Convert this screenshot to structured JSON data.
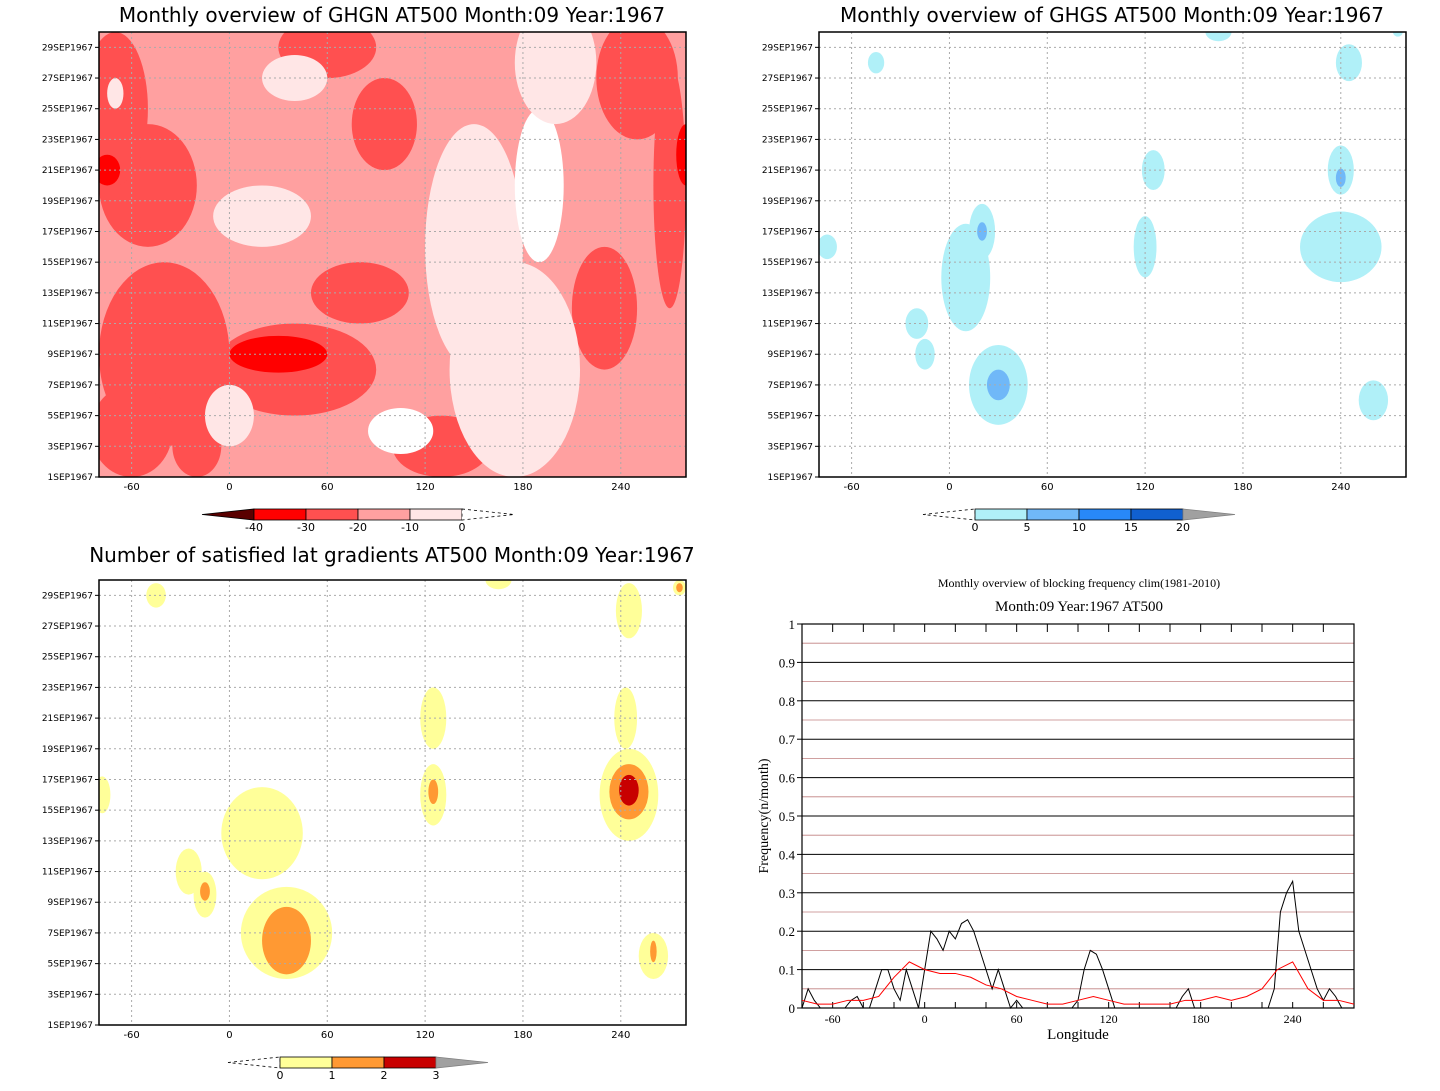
{
  "colors": {
    "ghgn": [
      "#5a0000",
      "#ff0000",
      "#ff5050",
      "#ffa0a0",
      "#ffe6e6",
      "#ffffff"
    ],
    "ghgs": [
      "#ffffff",
      "#b0f0f8",
      "#70b8f8",
      "#2888f8",
      "#1060d0",
      "#a0a0a0"
    ],
    "lat": [
      "#ffffff",
      "#ffff99",
      "#ff9933",
      "#c80000",
      "#a0a0a0"
    ],
    "freq_black": "#000000",
    "freq_red": "#ff0000",
    "grid_black": "#000000",
    "grid_red": "#c08080"
  },
  "chart_data": [
    {
      "type": "heatmap",
      "title": "Monthly overview of GHGN AT500 Month:09 Year:1967",
      "x_ticks": [
        "-60",
        "0",
        "60",
        "120",
        "180",
        "240"
      ],
      "y_ticks": [
        "1SEP1967",
        "3SEP1967",
        "5SEP1967",
        "7SEP1967",
        "9SEP1967",
        "11SEP1967",
        "13SEP1967",
        "15SEP1967",
        "17SEP1967",
        "19SEP1967",
        "21SEP1967",
        "23SEP1967",
        "25SEP1967",
        "27SEP1967",
        "29SEP1967"
      ],
      "xlim": [
        -80,
        280
      ],
      "ylim_days": [
        1,
        30
      ],
      "colorbar": {
        "ticks": [
          "-40",
          "-30",
          "-20",
          "-10",
          "0"
        ],
        "levels": [
          -40,
          -30,
          -20,
          -10,
          0
        ]
      },
      "grid": true
    },
    {
      "type": "heatmap",
      "title": "Monthly overview of GHGS AT500 Month:09 Year:1967",
      "x_ticks": [
        "-60",
        "0",
        "60",
        "120",
        "180",
        "240"
      ],
      "y_ticks": [
        "1SEP1967",
        "3SEP1967",
        "5SEP1967",
        "7SEP1967",
        "9SEP1967",
        "11SEP1967",
        "13SEP1967",
        "15SEP1967",
        "17SEP1967",
        "19SEP1967",
        "21SEP1967",
        "23SEP1967",
        "25SEP1967",
        "27SEP1967",
        "29SEP1967"
      ],
      "xlim": [
        -80,
        280
      ],
      "ylim_days": [
        1,
        30
      ],
      "colorbar": {
        "ticks": [
          "0",
          "5",
          "10",
          "15",
          "20"
        ],
        "levels": [
          0,
          5,
          10,
          15,
          20
        ]
      },
      "grid": true
    },
    {
      "type": "heatmap",
      "title": "Number of satisfied lat gradients AT500 Month:09 Year:1967",
      "x_ticks": [
        "-60",
        "0",
        "60",
        "120",
        "180",
        "240"
      ],
      "y_ticks": [
        "1SEP1967",
        "3SEP1967",
        "5SEP1967",
        "7SEP1967",
        "9SEP1967",
        "11SEP1967",
        "13SEP1967",
        "15SEP1967",
        "17SEP1967",
        "19SEP1967",
        "21SEP1967",
        "23SEP1967",
        "25SEP1967",
        "27SEP1967",
        "29SEP1967"
      ],
      "xlim": [
        -80,
        280
      ],
      "ylim_days": [
        1,
        30
      ],
      "colorbar": {
        "ticks": [
          "0",
          "1",
          "2",
          "3"
        ],
        "levels": [
          0,
          1,
          2,
          3
        ]
      },
      "grid": true
    },
    {
      "type": "line",
      "title": "Monthly overview of blocking frequency clim(1981-2010)",
      "subtitle": "Month:09 Year:1967  AT500",
      "xlabel": "Longitude",
      "ylabel": "Frequency(n/month)",
      "xlim": [
        -80,
        280
      ],
      "ylim": [
        0,
        1
      ],
      "x_ticks": [
        "-60",
        "0",
        "60",
        "120",
        "180",
        "240"
      ],
      "y_ticks": [
        "0",
        "0.1",
        "0.2",
        "0.3",
        "0.4",
        "0.5",
        "0.6",
        "0.7",
        "0.8",
        "0.9",
        "1"
      ],
      "grid": true,
      "series": [
        {
          "color": "black",
          "x": [
            -80,
            -76,
            -72,
            -68,
            -64,
            -60,
            -56,
            -52,
            -48,
            -44,
            -40,
            -36,
            -32,
            -28,
            -24,
            -20,
            -16,
            -12,
            -8,
            -4,
            0,
            4,
            8,
            12,
            16,
            20,
            24,
            28,
            32,
            36,
            40,
            44,
            48,
            52,
            56,
            60,
            64,
            68,
            72,
            76,
            80,
            84,
            88,
            92,
            96,
            100,
            104,
            108,
            112,
            116,
            120,
            124,
            128,
            132,
            136,
            140,
            144,
            148,
            152,
            156,
            160,
            164,
            168,
            172,
            176,
            180,
            184,
            188,
            192,
            196,
            200,
            204,
            208,
            212,
            216,
            220,
            224,
            228,
            232,
            236,
            240,
            244,
            248,
            252,
            256,
            260,
            264,
            268,
            272,
            276,
            280
          ],
          "values": [
            0,
            0.05,
            0.02,
            0,
            0,
            0,
            0,
            0,
            0.02,
            0.03,
            0,
            0,
            0.05,
            0.1,
            0.1,
            0.05,
            0.02,
            0.1,
            0.05,
            0,
            0.1,
            0.2,
            0.18,
            0.15,
            0.2,
            0.18,
            0.22,
            0.23,
            0.2,
            0.15,
            0.1,
            0.05,
            0.1,
            0.05,
            0,
            0.02,
            0,
            0,
            0,
            0,
            0,
            0,
            0,
            0,
            0,
            0.02,
            0.1,
            0.15,
            0.14,
            0.1,
            0.05,
            0,
            0,
            0,
            0,
            0,
            0,
            0,
            0,
            0,
            0,
            0,
            0.03,
            0.05,
            0,
            0,
            0,
            0,
            0,
            0,
            0,
            0,
            0,
            0,
            0,
            0,
            0,
            0.05,
            0.25,
            0.3,
            0.33,
            0.2,
            0.15,
            0.1,
            0.05,
            0.02,
            0.05,
            0.03,
            0,
            0,
            0
          ]
        },
        {
          "color": "red",
          "x": [
            -80,
            -70,
            -60,
            -50,
            -40,
            -30,
            -20,
            -10,
            0,
            10,
            20,
            30,
            40,
            50,
            60,
            70,
            80,
            90,
            100,
            110,
            120,
            130,
            140,
            150,
            160,
            170,
            180,
            190,
            200,
            210,
            220,
            230,
            240,
            250,
            260,
            270,
            280
          ],
          "values": [
            0.02,
            0.01,
            0.01,
            0.02,
            0.02,
            0.03,
            0.08,
            0.12,
            0.1,
            0.09,
            0.09,
            0.08,
            0.06,
            0.05,
            0.03,
            0.02,
            0.01,
            0.01,
            0.02,
            0.03,
            0.02,
            0.01,
            0.01,
            0.01,
            0.01,
            0.02,
            0.02,
            0.03,
            0.02,
            0.03,
            0.05,
            0.1,
            0.12,
            0.05,
            0.02,
            0.02,
            0.01
          ]
        }
      ]
    }
  ]
}
